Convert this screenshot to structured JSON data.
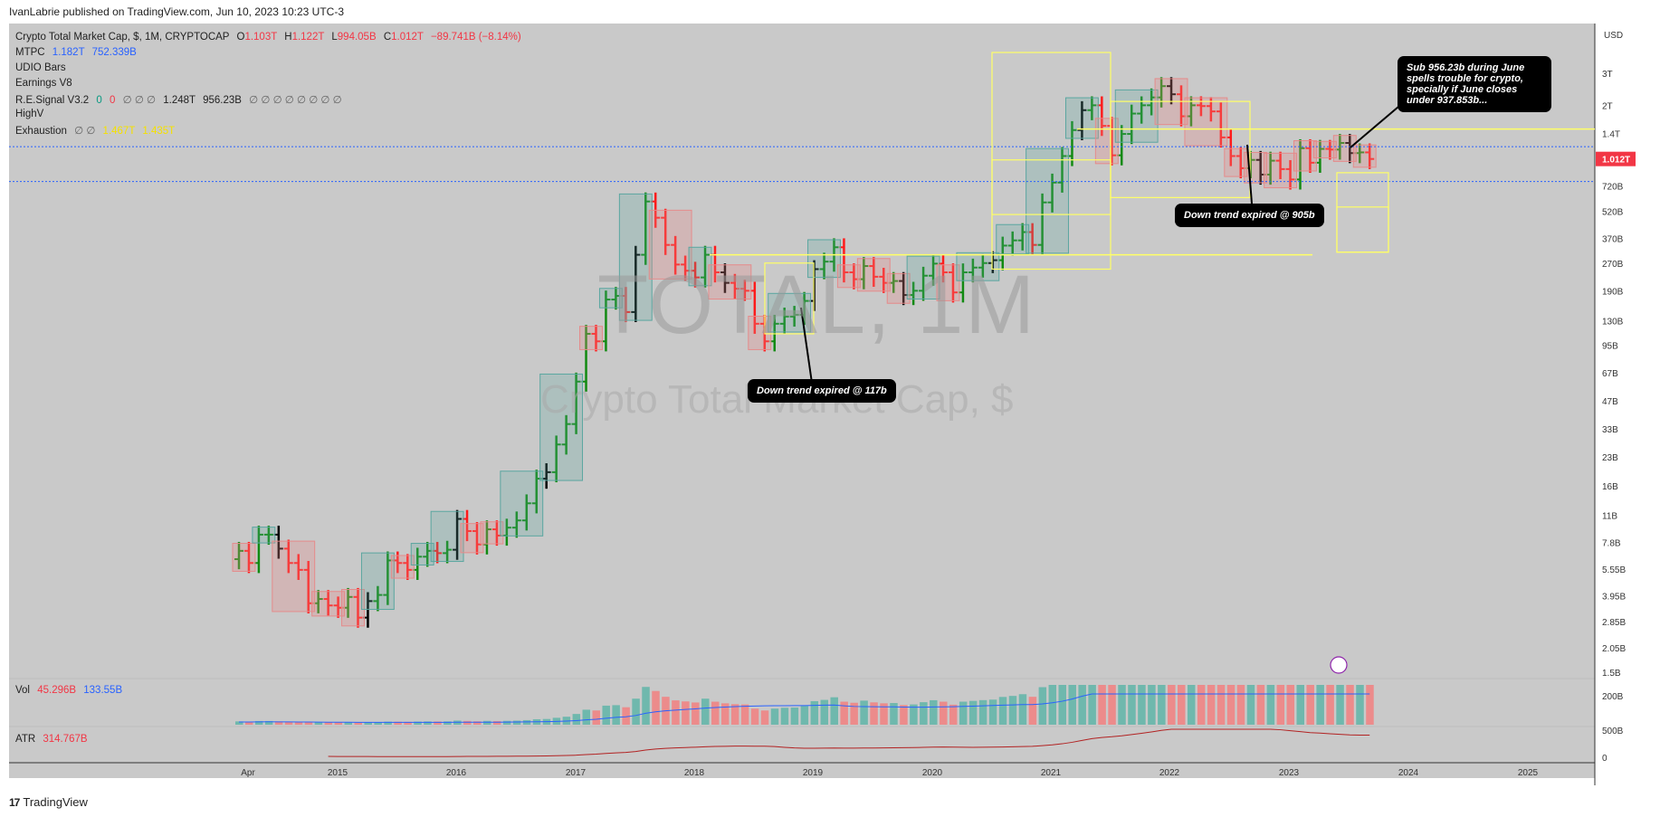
{
  "header": {
    "published_line": "IvanLabrie published on TradingView.com, Jun 10, 2023 10:23 UTC-3"
  },
  "legend": {
    "symbol": "Crypto Total Market Cap, $, 1M, CRYPTOCAP",
    "o_label": "O",
    "o_value": "1.103T",
    "h_label": "H",
    "h_value": "1.122T",
    "l_label": "L",
    "l_value": "994.05B",
    "c_label": "C",
    "c_value": "1.012T",
    "change": "−89.741B (−8.14%)",
    "mtpc": {
      "label": "MTPC",
      "v1": "1.182T",
      "v2": "752.339B"
    },
    "udio": "UDIO Bars",
    "earnings": "Earnings V8",
    "resignal": {
      "label": "R.E.Signal V3.2",
      "a": "0",
      "b": "0",
      "rest": "∅ ∅ ∅",
      "v1": "1.248T",
      "v2": "956.23B",
      "tail": "∅ ∅ ∅ ∅ ∅ ∅ ∅ ∅"
    },
    "highv": "HighV",
    "exhaustion": {
      "label": "Exhaustion",
      "rest": "∅ ∅",
      "v1": "1.467T",
      "v2": "1.435T"
    }
  },
  "watermark": {
    "symbol": "TOTAL, 1M",
    "name": "Crypto Total Market Cap, $"
  },
  "notes": {
    "n1": "Down trend expired @ 117b",
    "n2": "Down trend expired @ 905b",
    "n3": "Sub 956.23b during June spells trouble for crypto, specially if June closes under 937.853b..."
  },
  "price_axis": {
    "currency": "USD",
    "ticks": [
      "3T",
      "2T",
      "1.4T",
      "720B",
      "520B",
      "370B",
      "270B",
      "190B",
      "130B",
      "95B",
      "67B",
      "47B",
      "33B",
      "23B",
      "16B",
      "11B",
      "7.8B",
      "5.55B",
      "3.95B",
      "2.85B",
      "2.05B",
      "1.5B"
    ],
    "current_label": "1.012T"
  },
  "volume": {
    "label": "Vol",
    "v1": "45.296B",
    "v2": "133.55B",
    "ticks": [
      "200B"
    ]
  },
  "atr": {
    "label": "ATR",
    "value": "314.767B",
    "ticks": [
      "500B",
      "0"
    ]
  },
  "time_axis": [
    "Apr",
    "2015",
    "2016",
    "2017",
    "2018",
    "2019",
    "2020",
    "2021",
    "2022",
    "2023",
    "2024",
    "2025"
  ],
  "branding": {
    "name": "TradingView"
  },
  "colors": {
    "up": "#128a12",
    "down": "#ff1b1b",
    "neutral": "#000000",
    "box_up": "#5aa6a0",
    "box_down": "#e58b8b",
    "zone": "#ffff66",
    "ma": "#2962ff",
    "atr": "#b22222"
  },
  "chart_data": {
    "type": "ohlc_bars",
    "title": "Crypto Total Market Cap, $, 1M, CRYPTOCAP",
    "scale": "log",
    "ylim": [
      1.5,
      4000
    ],
    "xlabel": "",
    "ylabel": "USD",
    "grid": false,
    "start": "2014-04",
    "closes_billions": [
      7.0,
      6.0,
      8.6,
      8.6,
      7.2,
      6.0,
      5.5,
      3.6,
      3.8,
      3.5,
      3.4,
      3.9,
      3.0,
      3.7,
      4.0,
      6.2,
      6.0,
      5.5,
      6.5,
      7.0,
      6.8,
      7.1,
      10.5,
      9.0,
      7.6,
      9.2,
      8.5,
      9.4,
      10.3,
      12.8,
      17.5,
      19.0,
      27.0,
      35.0,
      60.0,
      110.0,
      100.0,
      170.0,
      178.0,
      145.0,
      300.0,
      590.0,
      480.0,
      340.0,
      265.0,
      245.0,
      225.0,
      300.0,
      240.0,
      210.0,
      195.0,
      190.0,
      125.0,
      100.0,
      125.0,
      137.0,
      140.0,
      167.0,
      250.0,
      275.0,
      330.0,
      240.0,
      220.0,
      260.0,
      227.0,
      210.0,
      215.0,
      180.0,
      190.0,
      230.0,
      268.0,
      240.0,
      186.0,
      240.0,
      255.0,
      270.0,
      280.0,
      337.0,
      360.0,
      400.0,
      340.0,
      583.0,
      750.0,
      1050.0,
      1460.0,
      1880.0,
      2000.0,
      1540.0,
      1060.0,
      1390.0,
      1800.0,
      2000.0,
      2210.0,
      2550.0,
      2300.0,
      1740.0,
      2000.0,
      1980.0,
      1850.0,
      1330.0,
      1050.0,
      900.0,
      1000.0,
      830.0,
      990.0,
      890.0,
      780.0,
      1160.0,
      965.0,
      1150.0,
      1140.0,
      1240.0,
      1090.0,
      1100.0,
      1012.0
    ],
    "series": [
      {
        "name": "Vol",
        "last": "45.296B"
      },
      {
        "name": "Vol MA",
        "last": "133.55B"
      },
      {
        "name": "ATR",
        "last": "314.767B"
      }
    ],
    "levels": [
      {
        "name": "R.E.Signal",
        "value": "956.23B"
      },
      {
        "name": "MTPC",
        "value": "1.182T"
      }
    ]
  }
}
